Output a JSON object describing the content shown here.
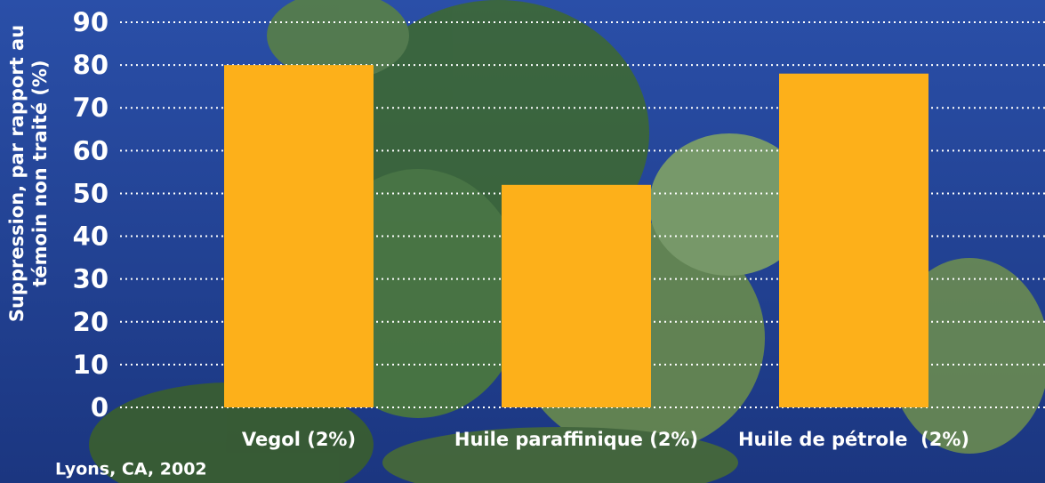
{
  "chart_data": {
    "type": "bar",
    "ylabel": [
      "Suppression, par rapport au",
      "témoin non traité (%)"
    ],
    "categories": [
      "Vegol (2%)",
      "Huile paraffinique (2%)",
      "Huile de pétrole  (2%)"
    ],
    "values": [
      80,
      52,
      78
    ],
    "color": "#fdb01a",
    "ylim": [
      0,
      90
    ],
    "yticks": [
      0,
      10,
      20,
      30,
      40,
      50,
      60,
      70,
      80,
      90
    ],
    "grid": true,
    "note": "Lyons, CA, 2002"
  }
}
